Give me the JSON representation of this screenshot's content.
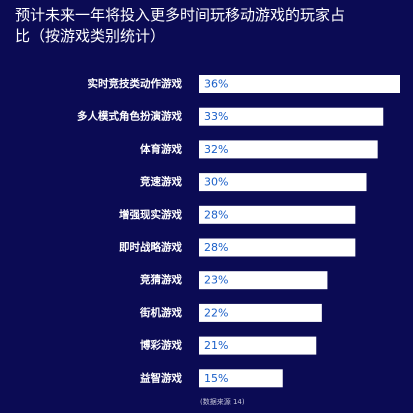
{
  "page": {
    "background": "#0b0b54",
    "title": "预计未来一年将投入更多时间玩移动游戏的玩家占比（按游戏类别统计）",
    "source_note": "(数据来源 14)"
  },
  "chart_data": {
    "type": "bar",
    "orientation": "horizontal",
    "title": "预计未来一年将投入更多时间玩移动游戏的玩家占比（按游戏类别统计）",
    "categories": [
      "实时竞技类动作游戏",
      "多人模式角色扮演游戏",
      "体育游戏",
      "竞速游戏",
      "增强现实游戏",
      "即时战略游戏",
      "竞猜游戏",
      "街机游戏",
      "博彩游戏",
      "益智游戏"
    ],
    "values": [
      36,
      33,
      32,
      30,
      28,
      28,
      23,
      22,
      21,
      15
    ],
    "value_labels": [
      "36%",
      "33%",
      "32%",
      "30%",
      "28%",
      "28%",
      "23%",
      "22%",
      "21%",
      "15%"
    ],
    "unit": "%",
    "xlim": [
      0,
      36
    ],
    "grid": false,
    "bar_color": "#ffffff",
    "label_color": "#1a5fc8"
  }
}
